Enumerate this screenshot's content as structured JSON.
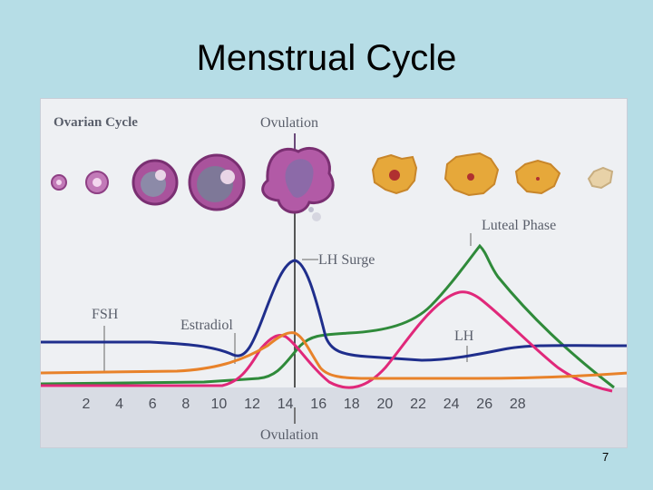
{
  "slide": {
    "title": "Menstrual Cycle",
    "page_number": "7"
  },
  "figure": {
    "ovarian_cycle_label": "Ovarian Cycle",
    "ovulation_top_label": "Ovulation",
    "luteal_phase_label": "Luteal Phase",
    "lh_surge_label": "LH Surge",
    "fsh_label": "FSH",
    "estradiol_label": "Estradiol",
    "lh_label": "LH",
    "ovulation_bottom_label": "Ovulation",
    "day_ticks": [
      "2",
      "4",
      "6",
      "8",
      "10",
      "12",
      "14",
      "16",
      "18",
      "20",
      "22",
      "24",
      "26",
      "28"
    ],
    "colors": {
      "fsh": "#1f2e8c",
      "lh": "#e0287a",
      "estradiol": "#e8822a",
      "progesterone": "#2f8a3a",
      "follicle": "#a9539c",
      "corpus_luteum": "#e6a83a"
    }
  }
}
